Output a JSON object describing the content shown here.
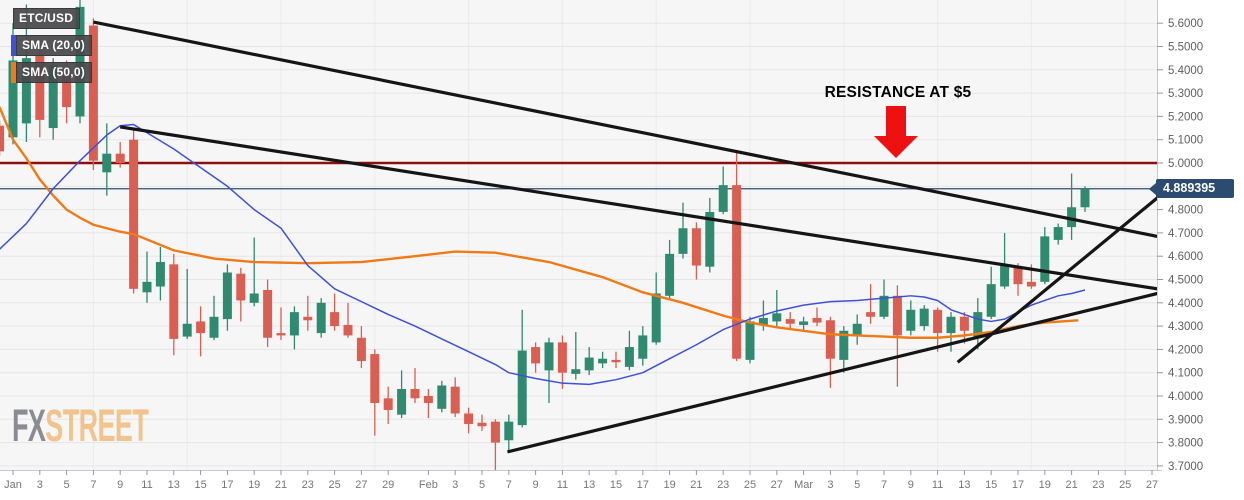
{
  "legend": {
    "symbol": "ETC/USD",
    "sma20_label": "SMA (20,0)",
    "sma50_label": "SMA (50,0)"
  },
  "annotation": {
    "text": "RESISTANCE AT $5"
  },
  "price_badge": {
    "value": "4.889395"
  },
  "logo": {
    "part1": "FX",
    "part2": "STREET"
  },
  "colors": {
    "up": "#2f8a70",
    "down": "#d95f53",
    "sma20": "#3f51d6",
    "sma50": "#ef7a16",
    "resistance": "#8f0f0f",
    "price_line": "#2b4c70",
    "badge_bg": "#2b4c70",
    "trendline": "#151515",
    "arrow": "#ee1111",
    "grid_h": "#e5e5e8",
    "grid_v": "#ececee",
    "plot_bg": "#f6f6f7",
    "axis_border": "#c8c8cc",
    "tick": "#999999",
    "logo_fx": "#898c90",
    "logo_street": "#f2c48d"
  },
  "time_axis": {
    "labels": [
      [
        0,
        "Jan"
      ],
      [
        2,
        "3"
      ],
      [
        4,
        "5"
      ],
      [
        6,
        "7"
      ],
      [
        8,
        "9"
      ],
      [
        10,
        "11"
      ],
      [
        12,
        "13"
      ],
      [
        14,
        "15"
      ],
      [
        16,
        "17"
      ],
      [
        18,
        "19"
      ],
      [
        20,
        "21"
      ],
      [
        22,
        "23"
      ],
      [
        24,
        "25"
      ],
      [
        26,
        "27"
      ],
      [
        28,
        "29"
      ],
      [
        31,
        "Feb"
      ],
      [
        33,
        "3"
      ],
      [
        35,
        "5"
      ],
      [
        37,
        "7"
      ],
      [
        39,
        "9"
      ],
      [
        41,
        "11"
      ],
      [
        43,
        "13"
      ],
      [
        45,
        "15"
      ],
      [
        47,
        "17"
      ],
      [
        49,
        "19"
      ],
      [
        51,
        "21"
      ],
      [
        53,
        "23"
      ],
      [
        55,
        "25"
      ],
      [
        57,
        "27"
      ],
      [
        59,
        "Mar"
      ],
      [
        61,
        "3"
      ],
      [
        63,
        "5"
      ],
      [
        65,
        "7"
      ],
      [
        67,
        "9"
      ],
      [
        69,
        "11"
      ],
      [
        71,
        "13"
      ],
      [
        73,
        "15"
      ],
      [
        75,
        "17"
      ],
      [
        77,
        "19"
      ],
      [
        79,
        "21"
      ],
      [
        81,
        "23"
      ],
      [
        83,
        "25"
      ],
      [
        85,
        "27"
      ]
    ]
  },
  "chart_data": {
    "type": "candlestick",
    "instrument": "ETC/USD",
    "title": "ETC/USD daily chart with SMA(20), SMA(50), resistance at $5 and trendlines",
    "x_unit": "days since Jan 1",
    "ylim": [
      3.68,
      5.7
    ],
    "y_ticks": [
      5.6,
      5.5,
      5.4,
      5.3,
      5.2,
      5.1,
      5.0,
      4.9,
      4.8,
      4.7,
      4.6,
      4.5,
      4.4,
      4.3,
      4.2,
      4.1,
      4.0,
      3.9,
      3.8,
      3.7
    ],
    "weekly_grid": [
      6,
      13,
      20,
      27,
      34,
      41,
      48,
      55,
      62,
      69,
      76,
      83
    ],
    "resistance_level": 5.0,
    "current_price": 4.889395,
    "candles": [
      [
        -1,
        5.16,
        5.18,
        5.03,
        5.05
      ],
      [
        0,
        5.11,
        5.6,
        5.08,
        5.44
      ],
      [
        1,
        5.17,
        5.68,
        5.09,
        5.45
      ],
      [
        2,
        5.46,
        5.53,
        5.11,
        5.185
      ],
      [
        3,
        5.15,
        5.45,
        5.1,
        5.42
      ],
      [
        4,
        5.4,
        5.44,
        5.17,
        5.24
      ],
      [
        5,
        5.2,
        5.7,
        5.17,
        5.67
      ],
      [
        6,
        5.59,
        5.62,
        4.97,
        5.01
      ],
      [
        7,
        4.96,
        5.17,
        4.86,
        5.04
      ],
      [
        8,
        5.04,
        5.09,
        4.98,
        5.0
      ],
      [
        9,
        5.1,
        5.14,
        4.44,
        4.46
      ],
      [
        10,
        4.445,
        4.62,
        4.4,
        4.49
      ],
      [
        11,
        4.47,
        4.64,
        4.41,
        4.575
      ],
      [
        12,
        4.565,
        4.61,
        4.175,
        4.245
      ],
      [
        13,
        4.255,
        4.545,
        4.245,
        4.31
      ],
      [
        14,
        4.32,
        4.385,
        4.17,
        4.27
      ],
      [
        15,
        4.25,
        4.43,
        4.24,
        4.34
      ],
      [
        16,
        4.33,
        4.565,
        4.28,
        4.53
      ],
      [
        17,
        4.525,
        4.55,
        4.32,
        4.41
      ],
      [
        18,
        4.4,
        4.68,
        4.385,
        4.44
      ],
      [
        19,
        4.455,
        4.5,
        4.21,
        4.25
      ],
      [
        20,
        4.27,
        4.38,
        4.24,
        4.26
      ],
      [
        21,
        4.26,
        4.385,
        4.2,
        4.36
      ],
      [
        22,
        4.34,
        4.43,
        4.28,
        4.325
      ],
      [
        23,
        4.27,
        4.42,
        4.25,
        4.4
      ],
      [
        24,
        4.36,
        4.44,
        4.28,
        4.3
      ],
      [
        25,
        4.305,
        4.4,
        4.25,
        4.26
      ],
      [
        26,
        4.25,
        4.3,
        4.12,
        4.15
      ],
      [
        27,
        4.18,
        4.2,
        3.83,
        3.97
      ],
      [
        28,
        3.99,
        4.04,
        3.88,
        3.94
      ],
      [
        29,
        3.92,
        4.11,
        3.905,
        4.03
      ],
      [
        30,
        4.03,
        4.12,
        3.97,
        3.99
      ],
      [
        31,
        4.0,
        4.03,
        3.905,
        3.97
      ],
      [
        32,
        3.945,
        4.065,
        3.93,
        4.045
      ],
      [
        33,
        4.04,
        4.08,
        3.91,
        3.925
      ],
      [
        34,
        3.925,
        3.95,
        3.84,
        3.88
      ],
      [
        35,
        3.885,
        3.92,
        3.85,
        3.87
      ],
      [
        36,
        3.89,
        3.9,
        3.675,
        3.8
      ],
      [
        37,
        3.81,
        3.92,
        3.76,
        3.89
      ],
      [
        38,
        3.875,
        4.37,
        3.865,
        4.195
      ],
      [
        39,
        4.21,
        4.23,
        4.1,
        4.14
      ],
      [
        40,
        4.11,
        4.25,
        3.97,
        4.23
      ],
      [
        41,
        4.23,
        4.26,
        4.03,
        4.1
      ],
      [
        42,
        4.095,
        4.275,
        4.07,
        4.115
      ],
      [
        43,
        4.11,
        4.21,
        4.09,
        4.165
      ],
      [
        44,
        4.14,
        4.19,
        4.12,
        4.16
      ],
      [
        45,
        4.155,
        4.19,
        4.12,
        4.145
      ],
      [
        46,
        4.125,
        4.28,
        4.11,
        4.21
      ],
      [
        47,
        4.16,
        4.3,
        4.13,
        4.26
      ],
      [
        48,
        4.23,
        4.53,
        4.22,
        4.44
      ],
      [
        49,
        4.43,
        4.67,
        4.42,
        4.61
      ],
      [
        50,
        4.61,
        4.83,
        4.59,
        4.72
      ],
      [
        51,
        4.72,
        4.745,
        4.5,
        4.56
      ],
      [
        52,
        4.555,
        4.85,
        4.53,
        4.79
      ],
      [
        53,
        4.79,
        4.985,
        4.78,
        4.905
      ],
      [
        54,
        4.905,
        5.05,
        4.15,
        4.16
      ],
      [
        55,
        4.155,
        4.34,
        4.14,
        4.32
      ],
      [
        56,
        4.305,
        4.41,
        4.28,
        4.335
      ],
      [
        57,
        4.32,
        4.455,
        4.3,
        4.355
      ],
      [
        58,
        4.33,
        4.36,
        4.29,
        4.31
      ],
      [
        59,
        4.305,
        4.34,
        4.28,
        4.32
      ],
      [
        60,
        4.335,
        4.38,
        4.3,
        4.315
      ],
      [
        61,
        4.325,
        4.34,
        4.035,
        4.16
      ],
      [
        62,
        4.155,
        4.3,
        4.1,
        4.28
      ],
      [
        63,
        4.26,
        4.35,
        4.22,
        4.31
      ],
      [
        64,
        4.36,
        4.48,
        4.31,
        4.34
      ],
      [
        65,
        4.34,
        4.5,
        4.33,
        4.43
      ],
      [
        66,
        4.43,
        4.475,
        4.04,
        4.26
      ],
      [
        67,
        4.28,
        4.41,
        4.26,
        4.37
      ],
      [
        68,
        4.3,
        4.39,
        4.28,
        4.375
      ],
      [
        69,
        4.37,
        4.38,
        4.19,
        4.27
      ],
      [
        70,
        4.27,
        4.36,
        4.19,
        4.34
      ],
      [
        71,
        4.34,
        4.36,
        4.225,
        4.28
      ],
      [
        72,
        4.255,
        4.42,
        4.2,
        4.36
      ],
      [
        73,
        4.34,
        4.555,
        4.33,
        4.48
      ],
      [
        74,
        4.47,
        4.7,
        4.46,
        4.565
      ],
      [
        75,
        4.555,
        4.57,
        4.43,
        4.48
      ],
      [
        76,
        4.49,
        4.565,
        4.46,
        4.47
      ],
      [
        77,
        4.49,
        4.725,
        4.48,
        4.685
      ],
      [
        78,
        4.67,
        4.74,
        4.65,
        4.725
      ],
      [
        79,
        4.725,
        4.955,
        4.67,
        4.81
      ],
      [
        80,
        4.81,
        4.9,
        4.79,
        4.889
      ]
    ],
    "sma20": [
      [
        -1,
        4.63
      ],
      [
        1,
        4.74
      ],
      [
        3,
        4.89
      ],
      [
        5,
        5.01
      ],
      [
        7,
        5.12
      ],
      [
        8,
        5.16
      ],
      [
        9,
        5.165
      ],
      [
        10,
        5.13
      ],
      [
        12,
        5.06
      ],
      [
        14,
        4.98
      ],
      [
        16,
        4.9
      ],
      [
        18,
        4.8
      ],
      [
        20,
        4.72
      ],
      [
        22,
        4.56
      ],
      [
        24,
        4.46
      ],
      [
        26,
        4.405
      ],
      [
        28,
        4.35
      ],
      [
        30,
        4.3
      ],
      [
        32,
        4.245
      ],
      [
        34,
        4.19
      ],
      [
        36,
        4.135
      ],
      [
        37,
        4.1
      ],
      [
        39,
        4.075
      ],
      [
        41,
        4.055
      ],
      [
        43,
        4.05
      ],
      [
        45,
        4.07
      ],
      [
        47,
        4.1
      ],
      [
        49,
        4.16
      ],
      [
        51,
        4.22
      ],
      [
        53,
        4.285
      ],
      [
        55,
        4.33
      ],
      [
        57,
        4.365
      ],
      [
        59,
        4.39
      ],
      [
        61,
        4.405
      ],
      [
        63,
        4.41
      ],
      [
        65,
        4.42
      ],
      [
        67,
        4.43
      ],
      [
        68,
        4.425
      ],
      [
        69,
        4.41
      ],
      [
        70,
        4.37
      ],
      [
        71,
        4.35
      ],
      [
        72,
        4.33
      ],
      [
        73,
        4.32
      ],
      [
        74,
        4.33
      ],
      [
        75,
        4.36
      ],
      [
        76,
        4.39
      ],
      [
        77,
        4.41
      ],
      [
        78,
        4.43
      ],
      [
        79,
        4.44
      ],
      [
        80,
        4.455
      ]
    ],
    "sma50": [
      [
        -1,
        5.24
      ],
      [
        0,
        5.1
      ],
      [
        1,
        5.02
      ],
      [
        2,
        4.93
      ],
      [
        3,
        4.86
      ],
      [
        4,
        4.8
      ],
      [
        5,
        4.765
      ],
      [
        6,
        4.735
      ],
      [
        8,
        4.705
      ],
      [
        9,
        4.695
      ],
      [
        12,
        4.625
      ],
      [
        15,
        4.59
      ],
      [
        18,
        4.575
      ],
      [
        22,
        4.57
      ],
      [
        26,
        4.575
      ],
      [
        30,
        4.6
      ],
      [
        33,
        4.62
      ],
      [
        36,
        4.615
      ],
      [
        40,
        4.575
      ],
      [
        44,
        4.51
      ],
      [
        47,
        4.445
      ],
      [
        50,
        4.4
      ],
      [
        53,
        4.345
      ],
      [
        55,
        4.315
      ],
      [
        57,
        4.295
      ],
      [
        59,
        4.28
      ],
      [
        61,
        4.265
      ],
      [
        63,
        4.26
      ],
      [
        65,
        4.255
      ],
      [
        67,
        4.25
      ],
      [
        69,
        4.25
      ],
      [
        71,
        4.26
      ],
      [
        73,
        4.275
      ],
      [
        75,
        4.3
      ],
      [
        77,
        4.315
      ],
      [
        79.5,
        4.325
      ]
    ],
    "trendlines": [
      {
        "name": "upper-descending-resistance",
        "from": [
          6,
          5.605
        ],
        "to": [
          85.4,
          4.685
        ]
      },
      {
        "name": "lower-descending-resistance",
        "from": [
          8,
          5.155
        ],
        "to": [
          85.4,
          4.46
        ]
      },
      {
        "name": "ascending-support",
        "from": [
          36.9,
          3.76
        ],
        "to": [
          85.4,
          4.44
        ]
      },
      {
        "name": "steep-ascending-support",
        "from": [
          70.5,
          4.145
        ],
        "to": [
          85.6,
          4.86
        ]
      }
    ]
  }
}
